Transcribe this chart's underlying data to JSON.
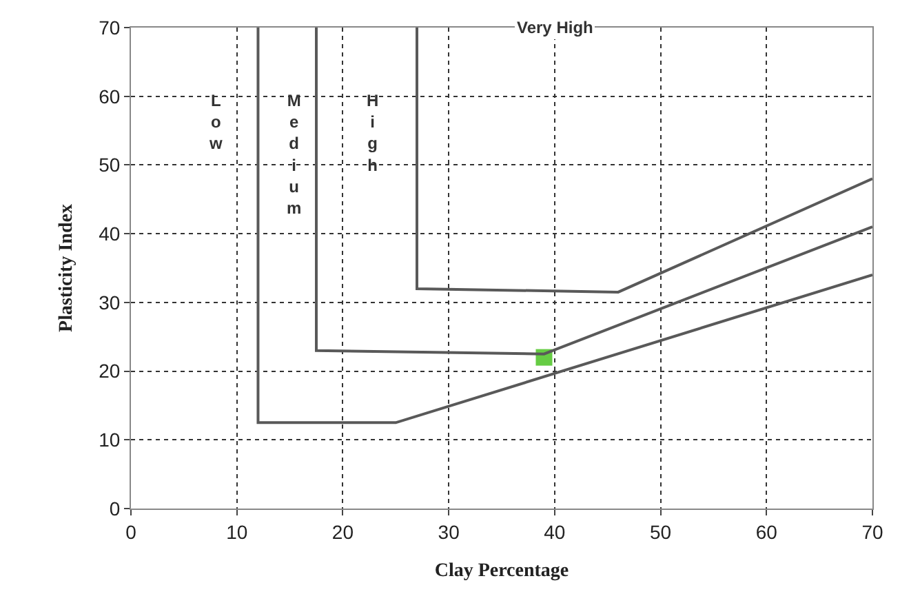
{
  "chart_data": {
    "type": "line",
    "xlabel": "Clay Percentage",
    "ylabel": "Plasticity Index",
    "xlim": [
      0,
      70
    ],
    "ylim": [
      0,
      70
    ],
    "xticks": [
      0,
      10,
      20,
      30,
      40,
      50,
      60,
      70
    ],
    "yticks": [
      0,
      10,
      20,
      30,
      40,
      50,
      60,
      70
    ],
    "grid": true,
    "series": [
      {
        "type": "scatter",
        "color": "#66cc44",
        "marker": "square",
        "x": [
          39
        ],
        "values": [
          22
        ]
      },
      {
        "color": "#595959",
        "x": [
          12,
          12,
          25,
          70
        ],
        "values": [
          70,
          12.5,
          12.5,
          34
        ]
      },
      {
        "color": "#595959",
        "x": [
          17.5,
          17.5,
          39,
          70
        ],
        "values": [
          70,
          23,
          22.5,
          41
        ]
      },
      {
        "color": "#595959",
        "x": [
          27,
          27,
          46,
          70
        ],
        "values": [
          70,
          32,
          31.5,
          48
        ]
      }
    ],
    "annotations": [
      "Low",
      "Medium",
      "High",
      "Very High"
    ]
  }
}
